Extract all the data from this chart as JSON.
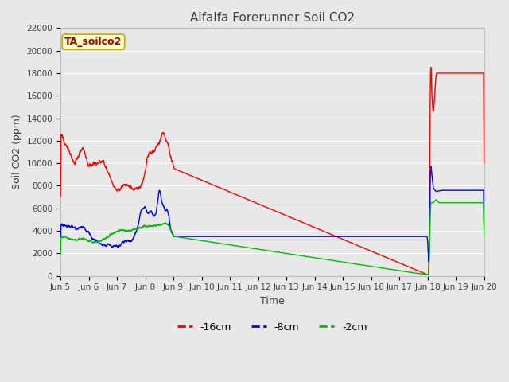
{
  "title": "Alfalfa Forerunner Soil CO2",
  "xlabel": "Time",
  "ylabel": "Soil CO2 (ppm)",
  "ylim": [
    0,
    22000
  ],
  "yticks": [
    0,
    2000,
    4000,
    6000,
    8000,
    10000,
    12000,
    14000,
    16000,
    18000,
    20000,
    22000
  ],
  "xtick_labels": [
    "Jun 5",
    "Jun 6",
    "Jun 7",
    "Jun 8",
    "Jun 9",
    "Jun 10",
    "Jun 11",
    "Jun 12",
    "Jun 13",
    "Jun 14",
    "Jun 15",
    "Jun 16",
    "Jun 17",
    "Jun 18",
    "Jun 19",
    "Jun 20"
  ],
  "line_colors": {
    "m16cm": "#ff0000",
    "m8cm": "#0000ff",
    "m2cm": "#00bb00"
  },
  "legend_labels": [
    "-16cm",
    "-8cm",
    "-2cm"
  ],
  "watermark_text": "TA_soilco2",
  "background_color": "#e8e8e8",
  "plot_bg_color": "#e8e8e8",
  "grid_color": "#ffffff",
  "title_color": "#404040",
  "axis_label_color": "#404040",
  "figsize": [
    6.4,
    4.8
  ],
  "dpi": 100
}
